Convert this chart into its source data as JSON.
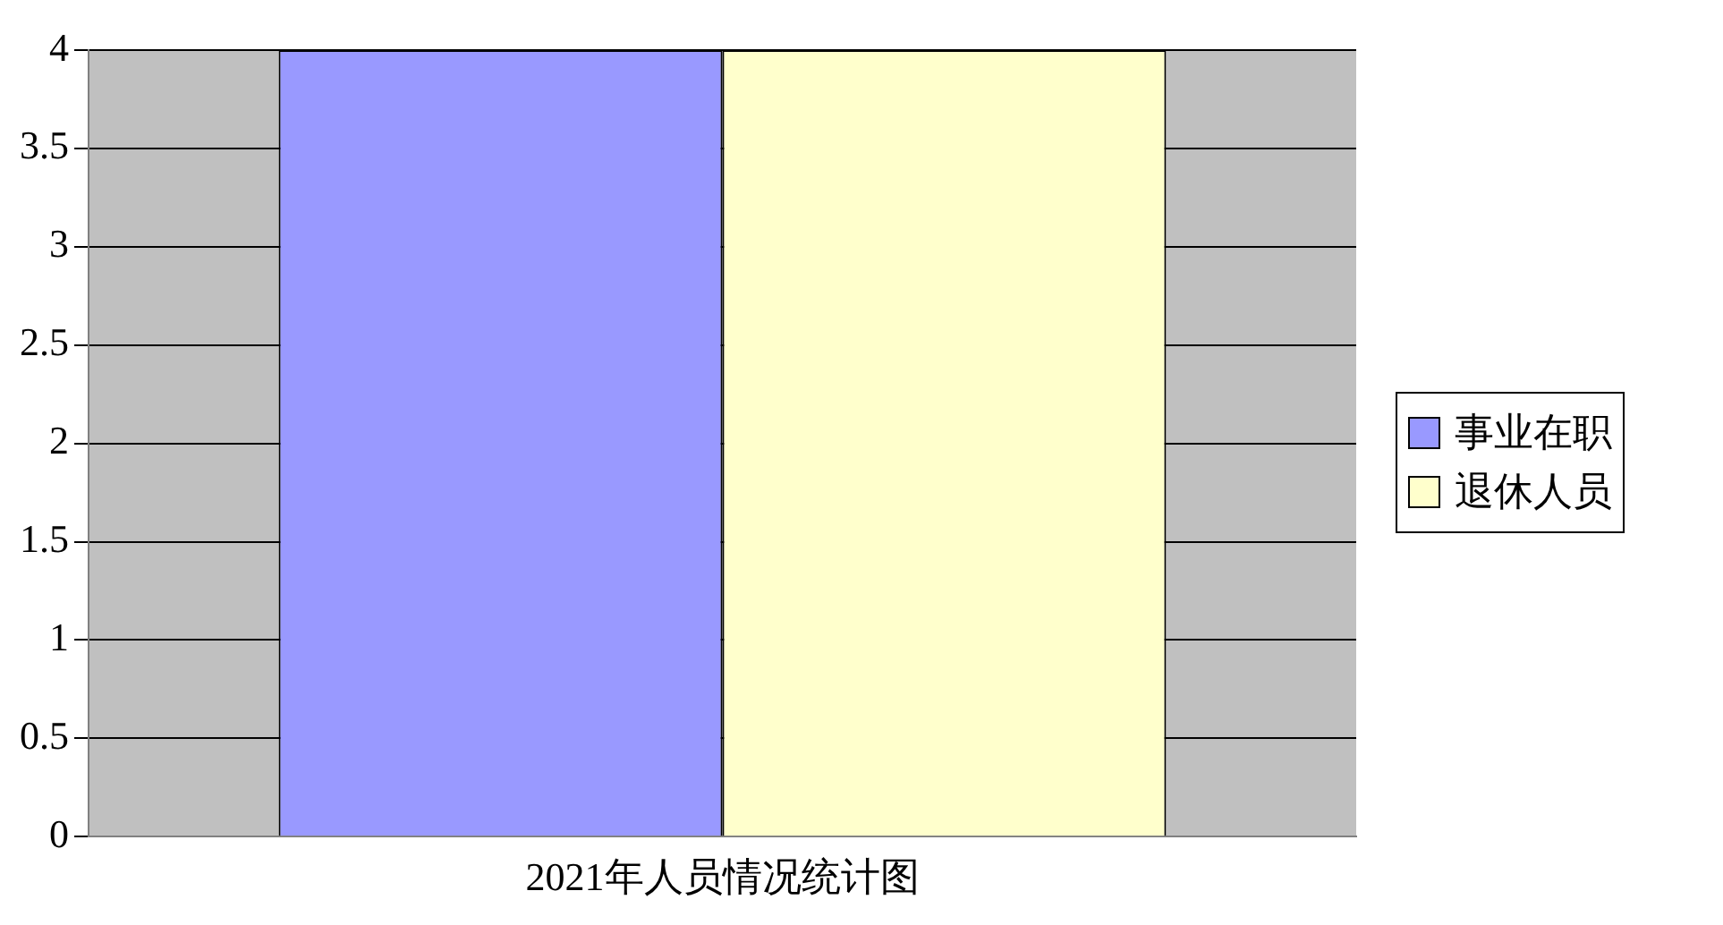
{
  "chart_data": {
    "type": "bar",
    "categories": [
      "2021年人员情况统计图"
    ],
    "series": [
      {
        "name": "事业在职",
        "color": "#9999ff",
        "values": [
          4
        ]
      },
      {
        "name": "退休人员",
        "color": "#ffffcc",
        "values": [
          4
        ]
      }
    ],
    "ylim": [
      0,
      4
    ],
    "yticks": [
      0,
      0.5,
      1,
      1.5,
      2,
      2.5,
      3,
      3.5,
      4
    ],
    "grid": "y",
    "legend": "right"
  }
}
